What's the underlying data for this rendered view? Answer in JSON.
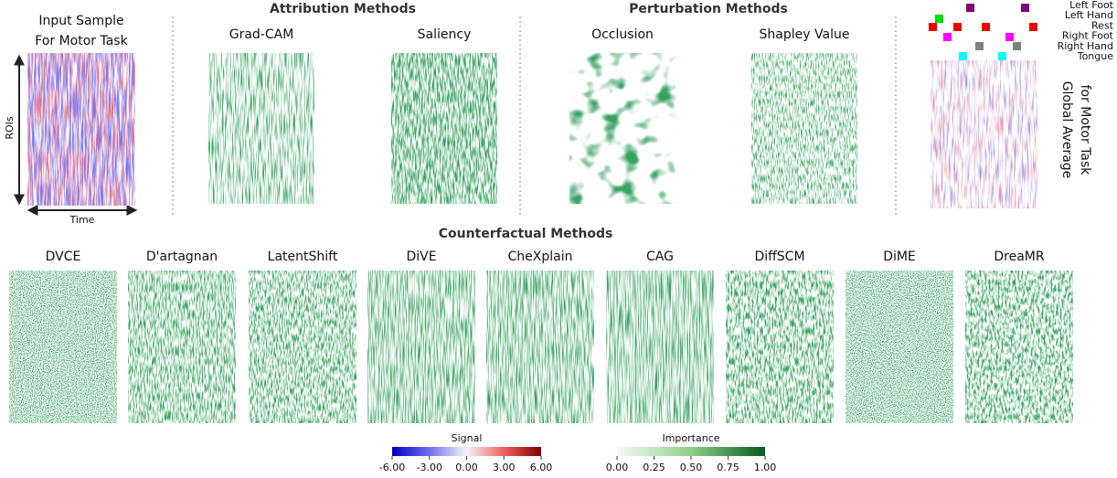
{
  "input": {
    "title": [
      "Input Sample",
      "For Motor Task"
    ],
    "y_axis": "ROIs",
    "x_axis": "Time"
  },
  "sections": [
    {
      "title": "Attribution Methods",
      "methods": [
        "Grad-CAM",
        "Saliency"
      ]
    },
    {
      "title": "Perturbation Methods",
      "methods": [
        "Occlusion",
        "Shapley Value"
      ]
    },
    {
      "title": "Counterfactual Methods",
      "methods": [
        "DVCE",
        "D'artagnan",
        "LatentShift",
        "DiVE",
        "CheXplain",
        "CAG",
        "DiffSCM",
        "DiME",
        "DreaMR"
      ]
    }
  ],
  "legend": [
    {
      "label": "Left Foot",
      "color": "#800080"
    },
    {
      "label": "Left Hand",
      "color": "#00dd00"
    },
    {
      "label": "Rest",
      "color": "#ee0000"
    },
    {
      "label": "Right Foot",
      "color": "#ff00ff"
    },
    {
      "label": "Right Hand",
      "color": "#808080"
    },
    {
      "label": "Tongue",
      "color": "#00ffff"
    }
  ],
  "global_title": [
    "Global Average",
    "for Motor Task"
  ],
  "colorbars": [
    {
      "title": "Signal",
      "range": [
        -6,
        6
      ],
      "ticks": [
        {
          "value": -6,
          "label": "-6.00"
        },
        {
          "value": -3,
          "label": "-3.00"
        },
        {
          "value": 0,
          "label": "0.00"
        },
        {
          "value": 3,
          "label": "3.00"
        },
        {
          "value": 6,
          "label": "6.00"
        }
      ]
    },
    {
      "title": "Importance",
      "range": [
        0,
        1
      ],
      "ticks": [
        {
          "value": 0,
          "label": "0.00"
        },
        {
          "value": 0.25,
          "label": "0.25"
        },
        {
          "value": 0.5,
          "label": "0.50"
        },
        {
          "value": 0.75,
          "label": "0.75"
        },
        {
          "value": 1,
          "label": "1.00"
        }
      ]
    }
  ]
}
